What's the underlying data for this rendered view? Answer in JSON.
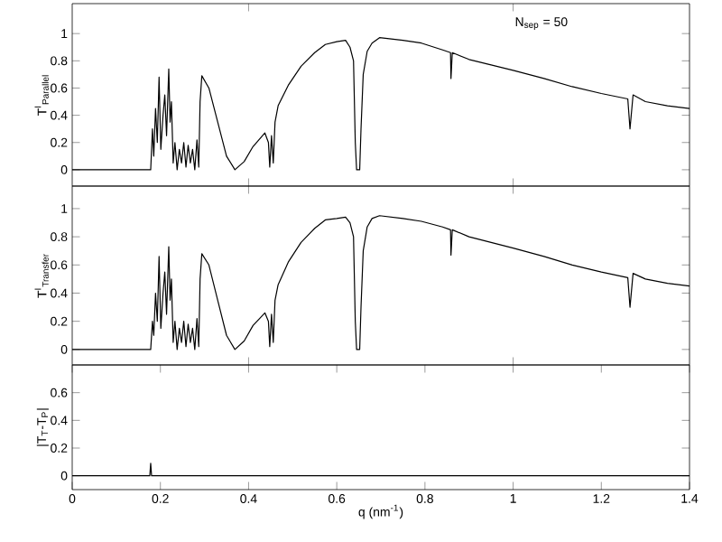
{
  "chart_data": [
    {
      "type": "line",
      "ylabel": "T$^{I}$$_{Parallel}$",
      "annotations": [
        "N$_{sep}$ = 50"
      ],
      "xlim": [
        0,
        1.4
      ],
      "xticks": [
        0.4,
        1.0
      ],
      "ylim": [
        -0.12,
        1.22
      ],
      "yticks": [
        0,
        0.2,
        0.4,
        0.6,
        0.8,
        1
      ],
      "tick_labels": "y",
      "color": "#000000",
      "x": [
        0,
        0.178,
        0.182,
        0.185,
        0.189,
        0.193,
        0.197,
        0.201,
        0.206,
        0.21,
        0.214,
        0.219,
        0.222,
        0.225,
        0.229,
        0.233,
        0.238,
        0.243,
        0.248,
        0.253,
        0.258,
        0.263,
        0.268,
        0.273,
        0.278,
        0.283,
        0.287,
        0.29,
        0.294,
        0.31,
        0.33,
        0.35,
        0.369,
        0.39,
        0.41,
        0.437,
        0.445,
        0.448,
        0.452,
        0.456,
        0.46,
        0.467,
        0.49,
        0.519,
        0.55,
        0.574,
        0.6,
        0.62,
        0.63,
        0.638,
        0.642,
        0.645,
        0.652,
        0.655,
        0.66,
        0.669,
        0.68,
        0.697,
        0.75,
        0.792,
        0.84,
        0.858,
        0.859,
        0.862,
        0.9,
        0.95,
        1.0,
        1.07,
        1.134,
        1.2,
        1.26,
        1.265,
        1.272,
        1.3,
        1.35,
        1.4
      ],
      "values": [
        0,
        0,
        0.3,
        0.1,
        0.45,
        0.2,
        0.68,
        0.15,
        0.4,
        0.55,
        0.25,
        0.74,
        0.35,
        0.5,
        0.05,
        0.2,
        0.0,
        0.15,
        0.05,
        0.2,
        0.02,
        0.18,
        0.05,
        0.15,
        0.0,
        0.22,
        0.02,
        0.5,
        0.69,
        0.6,
        0.35,
        0.1,
        0.0,
        0.06,
        0.17,
        0.27,
        0.2,
        0.02,
        0.25,
        0.05,
        0.35,
        0.47,
        0.62,
        0.76,
        0.86,
        0.92,
        0.94,
        0.95,
        0.9,
        0.8,
        0.2,
        0.0,
        0.0,
        0.3,
        0.7,
        0.87,
        0.93,
        0.97,
        0.95,
        0.93,
        0.88,
        0.86,
        0.67,
        0.86,
        0.81,
        0.77,
        0.73,
        0.67,
        0.61,
        0.56,
        0.52,
        0.3,
        0.55,
        0.5,
        0.47,
        0.45
      ]
    },
    {
      "type": "line",
      "ylabel": "T$^{I}$$_{Transfer}$",
      "xlim": [
        0,
        1.4
      ],
      "xticks": [
        0.4,
        1.0
      ],
      "ylim": [
        -0.11,
        1.16
      ],
      "yticks": [
        0,
        0.2,
        0.4,
        0.6,
        0.8,
        1
      ],
      "tick_labels": "y",
      "color": "#000000",
      "x": [
        0,
        0.178,
        0.182,
        0.185,
        0.189,
        0.193,
        0.197,
        0.201,
        0.206,
        0.21,
        0.214,
        0.219,
        0.222,
        0.225,
        0.229,
        0.233,
        0.238,
        0.243,
        0.248,
        0.253,
        0.258,
        0.263,
        0.268,
        0.273,
        0.278,
        0.283,
        0.287,
        0.29,
        0.294,
        0.31,
        0.33,
        0.35,
        0.369,
        0.39,
        0.41,
        0.437,
        0.445,
        0.448,
        0.452,
        0.456,
        0.46,
        0.467,
        0.49,
        0.519,
        0.55,
        0.574,
        0.6,
        0.62,
        0.63,
        0.638,
        0.642,
        0.645,
        0.652,
        0.655,
        0.66,
        0.669,
        0.68,
        0.697,
        0.75,
        0.792,
        0.84,
        0.858,
        0.859,
        0.862,
        0.9,
        0.95,
        1.0,
        1.07,
        1.134,
        1.2,
        1.26,
        1.265,
        1.272,
        1.3,
        1.35,
        1.4
      ],
      "values": [
        0,
        0,
        0.2,
        0.1,
        0.4,
        0.2,
        0.66,
        0.15,
        0.4,
        0.55,
        0.25,
        0.73,
        0.35,
        0.5,
        0.05,
        0.2,
        0.0,
        0.15,
        0.05,
        0.2,
        0.02,
        0.18,
        0.05,
        0.15,
        0.0,
        0.22,
        0.02,
        0.5,
        0.68,
        0.6,
        0.35,
        0.1,
        0.0,
        0.06,
        0.17,
        0.26,
        0.2,
        0.02,
        0.25,
        0.05,
        0.35,
        0.46,
        0.62,
        0.76,
        0.86,
        0.92,
        0.93,
        0.94,
        0.9,
        0.8,
        0.2,
        0.0,
        0.0,
        0.3,
        0.7,
        0.87,
        0.93,
        0.95,
        0.93,
        0.91,
        0.87,
        0.85,
        0.67,
        0.85,
        0.8,
        0.76,
        0.72,
        0.66,
        0.6,
        0.55,
        0.51,
        0.3,
        0.54,
        0.5,
        0.47,
        0.45
      ]
    },
    {
      "type": "line",
      "ylabel": "|T$_{T}$-T$_{P}$|",
      "xlabel": "q (nm$^{-1}$)",
      "xlim": [
        0,
        1.4
      ],
      "xticks": [
        0,
        0.2,
        0.4,
        0.6,
        0.8,
        1,
        1.2,
        1.4
      ],
      "ylim": [
        -0.1,
        0.8
      ],
      "yticks": [
        0,
        0.2,
        0.4,
        0.6
      ],
      "color": "#000000",
      "x": [
        0,
        0.176,
        0.178,
        0.18,
        1.4
      ],
      "values": [
        0,
        0,
        0.09,
        0,
        0
      ]
    }
  ]
}
